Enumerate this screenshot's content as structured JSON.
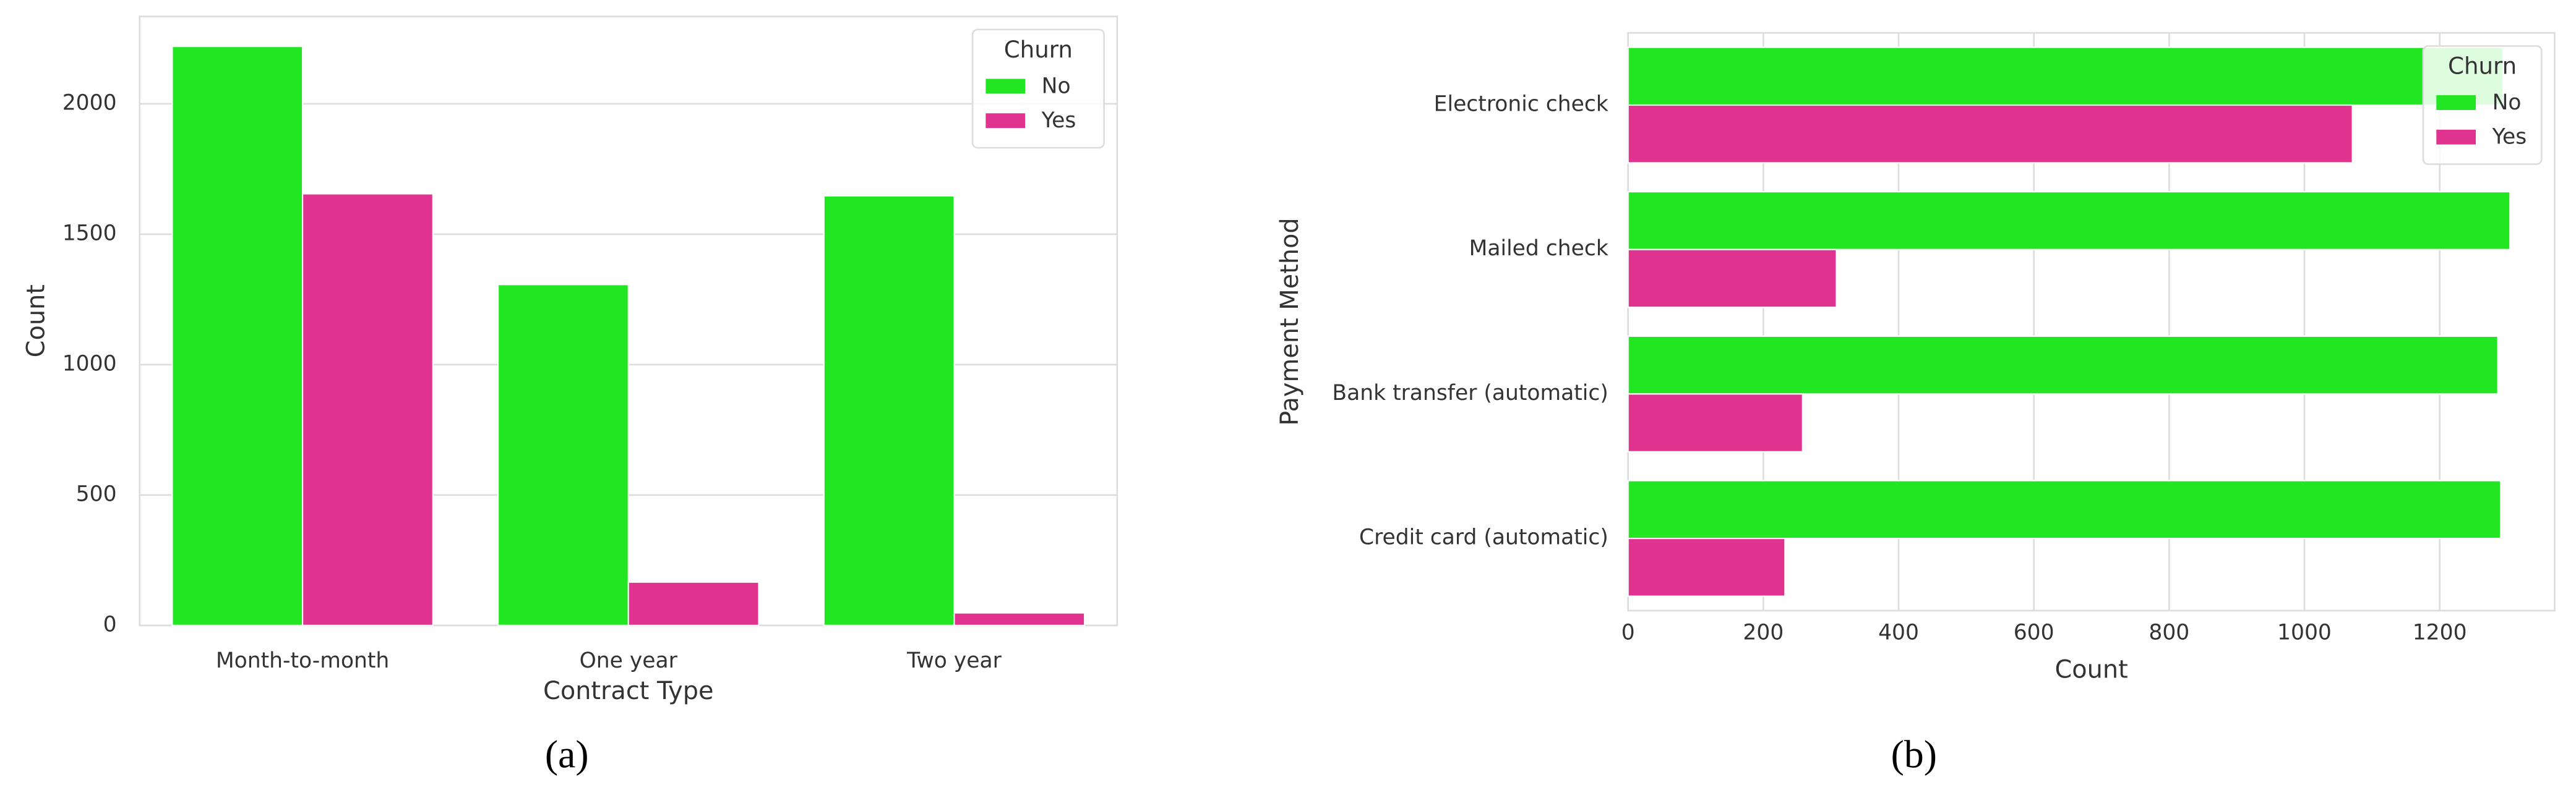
{
  "chart_data": [
    {
      "type": "bar",
      "orientation": "vertical",
      "categories": [
        "Month-to-month",
        "One year",
        "Two year"
      ],
      "series": [
        {
          "name": "No",
          "color": "#21e621",
          "values": [
            2220,
            1307,
            1647
          ]
        },
        {
          "name": "Yes",
          "color": "#e0338f",
          "values": [
            1655,
            166,
            48
          ]
        }
      ],
      "ylim": [
        0,
        2335
      ],
      "yticks": [
        0,
        500,
        1000,
        1500,
        2000
      ],
      "xlabel": "Contract Type",
      "ylabel": "Count",
      "legend_title": "Churn",
      "legend": "upper right",
      "grid": true,
      "caption": "(a)"
    },
    {
      "type": "bar",
      "orientation": "horizontal",
      "categories": [
        "Electronic check",
        "Mailed check",
        "Bank transfer (automatic)",
        "Credit card (automatic)"
      ],
      "series": [
        {
          "name": "No",
          "color": "#21e621",
          "values": [
            1294,
            1304,
            1286,
            1290
          ]
        },
        {
          "name": "Yes",
          "color": "#e0338f",
          "values": [
            1071,
            308,
            258,
            232
          ]
        }
      ],
      "xlim": [
        0,
        1370
      ],
      "xticks": [
        0,
        200,
        400,
        600,
        800,
        1000,
        1200
      ],
      "xlabel": "Count",
      "ylabel": "Payment Method",
      "legend_title": "Churn",
      "legend": "upper right",
      "grid": true,
      "caption": "(b)"
    }
  ]
}
